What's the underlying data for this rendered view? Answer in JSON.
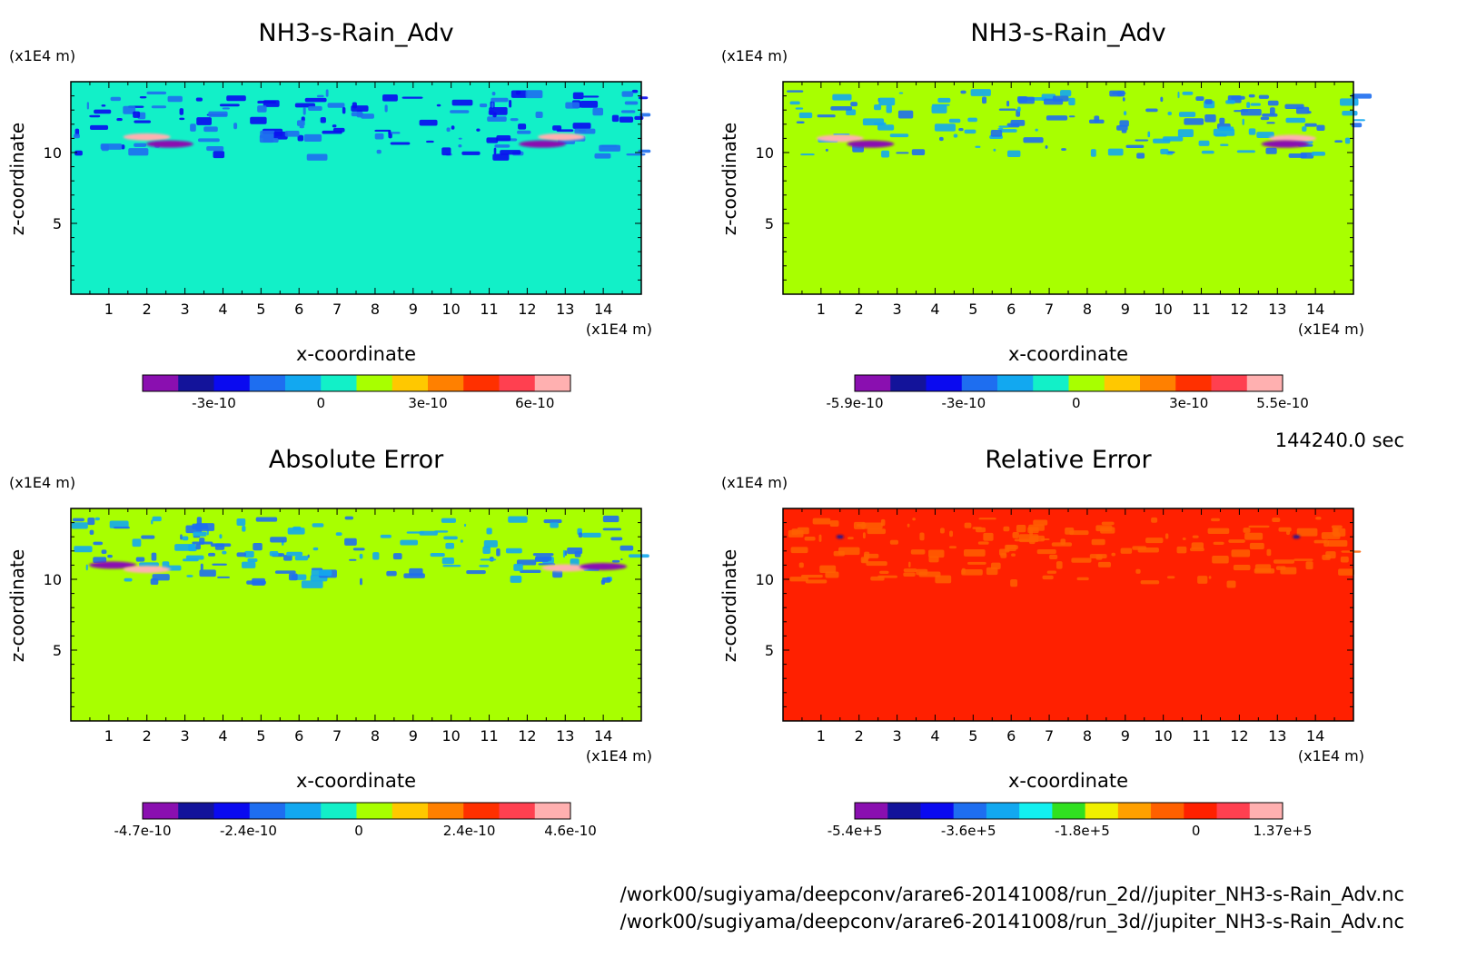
{
  "chart_data": [
    {
      "type": "heatmap",
      "title": "NH3-s-Rain_Adv",
      "xlabel": "x-coordinate",
      "ylabel": "z-coordinate",
      "x_unit": "(x1E4 m)",
      "y_unit": "(x1E4 m)",
      "xlim": [
        0,
        15
      ],
      "ylim": [
        0,
        15
      ],
      "xticks": [
        1,
        2,
        3,
        4,
        5,
        6,
        7,
        8,
        9,
        10,
        11,
        12,
        13,
        14
      ],
      "yticks": [
        5,
        10
      ],
      "background_level": 0,
      "colorbar": {
        "colors": [
          "#8a0fb0",
          "#13139a",
          "#0a0af0",
          "#1e6ef0",
          "#12a8f0",
          "#12f0c8",
          "#a8ff00",
          "#ffc800",
          "#ff8000",
          "#ff3000",
          "#ff4050",
          "#ffb0b0"
        ],
        "tick_values": [
          -3e-10,
          0,
          3e-10,
          6e-10
        ],
        "tick_labels": [
          "-3e-10",
          "0",
          "3e-10",
          "6e-10"
        ],
        "min": -5e-10,
        "max": 7e-10
      },
      "features": [
        {
          "x": 2.0,
          "z": 11.1,
          "value": 7.5e-10,
          "note": "positive peak near x=2"
        },
        {
          "x": 2.6,
          "z": 10.6,
          "value": -4.5e-10,
          "note": "negative lobe near x=2.6"
        },
        {
          "x": 12.9,
          "z": 11.1,
          "value": 7.5e-10,
          "note": "positive peak near x=13"
        },
        {
          "x": 12.4,
          "z": 10.6,
          "value": -4.5e-10,
          "note": "negative lobe near x=12.4"
        }
      ]
    },
    {
      "type": "heatmap",
      "title": "NH3-s-Rain_Adv",
      "xlabel": "x-coordinate",
      "ylabel": "z-coordinate",
      "x_unit": "(x1E4 m)",
      "y_unit": "(x1E4 m)",
      "xlim": [
        0,
        15
      ],
      "ylim": [
        0,
        15
      ],
      "xticks": [
        1,
        2,
        3,
        4,
        5,
        6,
        7,
        8,
        9,
        10,
        11,
        12,
        13,
        14
      ],
      "yticks": [
        5,
        10
      ],
      "background_level": 0,
      "colorbar": {
        "colors": [
          "#8a0fb0",
          "#13139a",
          "#0a0af0",
          "#1e6ef0",
          "#12a8f0",
          "#12f0c8",
          "#a8ff00",
          "#ffc800",
          "#ff8000",
          "#ff3000",
          "#ff4050",
          "#ffb0b0"
        ],
        "tick_values": [
          -5.9e-10,
          -3e-10,
          0,
          3e-10,
          5.5e-10
        ],
        "tick_labels": [
          "-5.9e-10",
          "-3e-10",
          "0",
          "3e-10",
          "5.5e-10"
        ],
        "min": -5.9e-10,
        "max": 5.5e-10
      },
      "features": [
        {
          "x": 1.5,
          "z": 11.0,
          "value": 5.5e-10,
          "note": "positive band near x=1.5"
        },
        {
          "x": 2.3,
          "z": 10.6,
          "value": -5.9e-10,
          "note": "negative band near x=2.3"
        },
        {
          "x": 13.4,
          "z": 11.0,
          "value": 5.5e-10,
          "note": "positive band near x=13.4"
        },
        {
          "x": 13.2,
          "z": 10.6,
          "value": -5.9e-10,
          "note": "negative band near x=13.2"
        }
      ]
    },
    {
      "type": "heatmap",
      "title": "Absolute Error",
      "xlabel": "x-coordinate",
      "ylabel": "z-coordinate",
      "x_unit": "(x1E4 m)",
      "y_unit": "(x1E4 m)",
      "xlim": [
        0,
        15
      ],
      "ylim": [
        0,
        15
      ],
      "xticks": [
        1,
        2,
        3,
        4,
        5,
        6,
        7,
        8,
        9,
        10,
        11,
        12,
        13,
        14
      ],
      "yticks": [
        5,
        10
      ],
      "background_level": 0,
      "colorbar": {
        "colors": [
          "#8a0fb0",
          "#13139a",
          "#0a0af0",
          "#1e6ef0",
          "#12a8f0",
          "#12f0c8",
          "#a8ff00",
          "#ffc800",
          "#ff8000",
          "#ff3000",
          "#ff4050",
          "#ffb0b0"
        ],
        "tick_values": [
          -4.7e-10,
          -2.4e-10,
          0,
          2.4e-10,
          4.6e-10
        ],
        "tick_labels": [
          "-4.7e-10",
          "-2.4e-10",
          "0",
          "2.4e-10",
          "4.6e-10"
        ],
        "min": -4.7e-10,
        "max": 4.6e-10
      },
      "features": [
        {
          "x": 1.1,
          "z": 11.0,
          "value": -4.7e-10,
          "note": "negative lobe near x=1"
        },
        {
          "x": 2.0,
          "z": 10.7,
          "value": 4.6e-10,
          "note": "positive lobe near x=2"
        },
        {
          "x": 13.0,
          "z": 10.8,
          "value": 4.6e-10,
          "note": "positive lobe near x=13"
        },
        {
          "x": 14.0,
          "z": 10.9,
          "value": -4.7e-10,
          "note": "negative lobe near x=14"
        }
      ]
    },
    {
      "type": "heatmap",
      "title": "Relative Error",
      "xlabel": "x-coordinate",
      "ylabel": "z-coordinate",
      "x_unit": "(x1E4 m)",
      "y_unit": "(x1E4 m)",
      "xlim": [
        0,
        15
      ],
      "ylim": [
        0,
        15
      ],
      "xticks": [
        1,
        2,
        3,
        4,
        5,
        6,
        7,
        8,
        9,
        10,
        11,
        12,
        13,
        14
      ],
      "yticks": [
        5,
        10
      ],
      "background_level": 0,
      "colorbar": {
        "colors": [
          "#8a0fb0",
          "#13139a",
          "#0a0af0",
          "#1e6ef0",
          "#12a8f0",
          "#12f0f0",
          "#30e020",
          "#f0f000",
          "#ffa000",
          "#ff6000",
          "#ff2000",
          "#ff4050",
          "#ffb0b0"
        ],
        "tick_values": [
          -540000.0,
          -360000.0,
          -180000.0,
          0,
          137000.0
        ],
        "tick_labels": [
          "-5.4e+5",
          "-3.6e+5",
          "-1.8e+5",
          "0",
          "1.37e+5"
        ],
        "min": -540000.0,
        "max": 137000.0
      },
      "features": [
        {
          "x": 1.5,
          "z": 13.0,
          "value": -450000.0,
          "note": "small negative spot near x=1.5"
        },
        {
          "x": 13.5,
          "z": 13.0,
          "value": -450000.0,
          "note": "small negative spot near x=13.5"
        }
      ]
    }
  ],
  "time_label": "144240.0 sec",
  "file_paths": [
    "/work00/sugiyama/deepconv/arare6-20141008/run_2d//jupiter_NH3-s-Rain_Adv.nc",
    "/work00/sugiyama/deepconv/arare6-20141008/run_3d//jupiter_NH3-s-Rain_Adv.nc"
  ]
}
